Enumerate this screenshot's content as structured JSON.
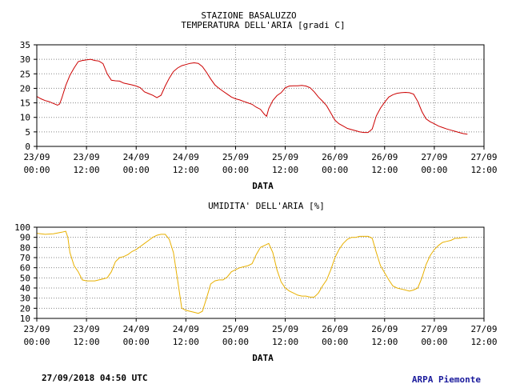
{
  "header": {
    "station": "STAZIONE BASALUZZO",
    "chart1_title": "TEMPERATURA DELL'ARIA [gradi C]"
  },
  "footer": {
    "timestamp": "27/09/2018 04:50 UTC",
    "credit": "ARPA Piemonte"
  },
  "chart_data": [
    {
      "type": "line",
      "title": "TEMPERATURA DELL'ARIA [gradi C]",
      "xlabel": "DATA",
      "ylabel": "",
      "unit": "gradi C",
      "color": "#cc0000",
      "x_ticks": [
        {
          "line1": "23/09",
          "line2": "00:00",
          "h": 0
        },
        {
          "line1": "23/09",
          "line2": "12:00",
          "h": 12
        },
        {
          "line1": "24/09",
          "line2": "00:00",
          "h": 24
        },
        {
          "line1": "24/09",
          "line2": "12:00",
          "h": 36
        },
        {
          "line1": "25/09",
          "line2": "00:00",
          "h": 48
        },
        {
          "line1": "25/09",
          "line2": "12:00",
          "h": 60
        },
        {
          "line1": "26/09",
          "line2": "00:00",
          "h": 72
        },
        {
          "line1": "26/09",
          "line2": "12:00",
          "h": 84
        },
        {
          "line1": "27/09",
          "line2": "00:00",
          "h": 96
        },
        {
          "line1": "27/09",
          "line2": "12:00",
          "h": 108
        }
      ],
      "xlim_h": [
        0,
        108
      ],
      "ylim": [
        0,
        35
      ],
      "y_ticks": [
        0,
        5,
        10,
        15,
        20,
        25,
        30,
        35
      ],
      "grid": true,
      "series": [
        {
          "points": [
            [
              0,
              17.2
            ],
            [
              1,
              16.4
            ],
            [
              2,
              15.8
            ],
            [
              3,
              15.4
            ],
            [
              4,
              14.8
            ],
            [
              5,
              14.2
            ],
            [
              5.5,
              14.6
            ],
            [
              6,
              16.5
            ],
            [
              7,
              21
            ],
            [
              8,
              24.5
            ],
            [
              9,
              27
            ],
            [
              10,
              29.2
            ],
            [
              11,
              29.6
            ],
            [
              12,
              29.8
            ],
            [
              13,
              30
            ],
            [
              14,
              29.6
            ],
            [
              15,
              29.4
            ],
            [
              16,
              28.5
            ],
            [
              17,
              25
            ],
            [
              18,
              22.8
            ],
            [
              19,
              22.6
            ],
            [
              20,
              22.5
            ],
            [
              21,
              21.8
            ],
            [
              22,
              21.5
            ],
            [
              23,
              21.2
            ],
            [
              24,
              20.8
            ],
            [
              25,
              20.2
            ],
            [
              26,
              18.8
            ],
            [
              27,
              18.2
            ],
            [
              28,
              17.6
            ],
            [
              29,
              16.8
            ],
            [
              30,
              17.6
            ],
            [
              31,
              20.8
            ],
            [
              32,
              23.5
            ],
            [
              33,
              25.8
            ],
            [
              34,
              27
            ],
            [
              35,
              27.8
            ],
            [
              36,
              28.2
            ],
            [
              37,
              28.6
            ],
            [
              38,
              28.8
            ],
            [
              39,
              28.6
            ],
            [
              40,
              27.5
            ],
            [
              41,
              25.5
            ],
            [
              42,
              23.2
            ],
            [
              43,
              21.2
            ],
            [
              44,
              20
            ],
            [
              45,
              19
            ],
            [
              46,
              18
            ],
            [
              47,
              17
            ],
            [
              48,
              16.4
            ],
            [
              49,
              16
            ],
            [
              50,
              15.5
            ],
            [
              51,
              15
            ],
            [
              52,
              14.5
            ],
            [
              53,
              13.5
            ],
            [
              54,
              12.8
            ],
            [
              55,
              11
            ],
            [
              55.5,
              10.4
            ],
            [
              56,
              13
            ],
            [
              57,
              15.8
            ],
            [
              58,
              17.5
            ],
            [
              59,
              18.5
            ],
            [
              60,
              20.2
            ],
            [
              61,
              20.8
            ],
            [
              62,
              20.9
            ],
            [
              63,
              20.9
            ],
            [
              64,
              21
            ],
            [
              65,
              20.8
            ],
            [
              66,
              20.2
            ],
            [
              67,
              18.8
            ],
            [
              68,
              17
            ],
            [
              69,
              15.6
            ],
            [
              70,
              14
            ],
            [
              71,
              11.5
            ],
            [
              72,
              9
            ],
            [
              73,
              7.8
            ],
            [
              74,
              7
            ],
            [
              75,
              6.2
            ],
            [
              76,
              5.8
            ],
            [
              77,
              5.4
            ],
            [
              78,
              5
            ],
            [
              79,
              4.8
            ],
            [
              80,
              4.8
            ],
            [
              81,
              6
            ],
            [
              82,
              10.5
            ],
            [
              83,
              13.2
            ],
            [
              84,
              15.2
            ],
            [
              85,
              17
            ],
            [
              86,
              17.8
            ],
            [
              87,
              18.3
            ],
            [
              88,
              18.5
            ],
            [
              89,
              18.6
            ],
            [
              90,
              18.5
            ],
            [
              91,
              18
            ],
            [
              92,
              15.5
            ],
            [
              93,
              12
            ],
            [
              94,
              9.5
            ],
            [
              95,
              8.5
            ],
            [
              96,
              7.8
            ],
            [
              97,
              7
            ],
            [
              98,
              6.5
            ],
            [
              99,
              6
            ],
            [
              100,
              5.6
            ],
            [
              101,
              5.2
            ],
            [
              102,
              4.8
            ],
            [
              103,
              4.4
            ],
            [
              104,
              4.2
            ]
          ]
        }
      ]
    },
    {
      "type": "line",
      "title": "UMIDITA' DELL'ARIA [%]",
      "xlabel": "DATA",
      "ylabel": "",
      "unit": "%",
      "color": "#e8b000",
      "x_ticks": [
        {
          "line1": "23/09",
          "line2": "00:00",
          "h": 0
        },
        {
          "line1": "23/09",
          "line2": "12:00",
          "h": 12
        },
        {
          "line1": "24/09",
          "line2": "00:00",
          "h": 24
        },
        {
          "line1": "24/09",
          "line2": "12:00",
          "h": 36
        },
        {
          "line1": "25/09",
          "line2": "00:00",
          "h": 48
        },
        {
          "line1": "25/09",
          "line2": "12:00",
          "h": 60
        },
        {
          "line1": "26/09",
          "line2": "00:00",
          "h": 72
        },
        {
          "line1": "26/09",
          "line2": "12:00",
          "h": 84
        },
        {
          "line1": "27/09",
          "line2": "00:00",
          "h": 96
        },
        {
          "line1": "27/09",
          "line2": "12:00",
          "h": 108
        }
      ],
      "xlim_h": [
        0,
        108
      ],
      "ylim": [
        10,
        100
      ],
      "y_ticks": [
        10,
        20,
        30,
        40,
        50,
        60,
        70,
        80,
        90,
        100
      ],
      "grid": true,
      "series": [
        {
          "points": [
            [
              0,
              94
            ],
            [
              2,
              93
            ],
            [
              4,
              93.5
            ],
            [
              6,
              95
            ],
            [
              7,
              96
            ],
            [
              7.5,
              90
            ],
            [
              8,
              75
            ],
            [
              9,
              62
            ],
            [
              10,
              56
            ],
            [
              11,
              48
            ],
            [
              12,
              47
            ],
            [
              13,
              47
            ],
            [
              14,
              47
            ],
            [
              15,
              48
            ],
            [
              16,
              49
            ],
            [
              17,
              50
            ],
            [
              18,
              56
            ],
            [
              19,
              66
            ],
            [
              20,
              70
            ],
            [
              21,
              71
            ],
            [
              22,
              73
            ],
            [
              23,
              76
            ],
            [
              24,
              78
            ],
            [
              25,
              81
            ],
            [
              26,
              84
            ],
            [
              27,
              87
            ],
            [
              28,
              90
            ],
            [
              29,
              92
            ],
            [
              30,
              93
            ],
            [
              31,
              93
            ],
            [
              32,
              88
            ],
            [
              33,
              75
            ],
            [
              34,
              48
            ],
            [
              35,
              20
            ],
            [
              36,
              18
            ],
            [
              37,
              17
            ],
            [
              38,
              16
            ],
            [
              39,
              15
            ],
            [
              40,
              17
            ],
            [
              41,
              30
            ],
            [
              42,
              44
            ],
            [
              43,
              47
            ],
            [
              44,
              48
            ],
            [
              45,
              48
            ],
            [
              46,
              51
            ],
            [
              47,
              56
            ],
            [
              48,
              58
            ],
            [
              49,
              60
            ],
            [
              50,
              61
            ],
            [
              51,
              62
            ],
            [
              52,
              64
            ],
            [
              53,
              73
            ],
            [
              54,
              80
            ],
            [
              55,
              82
            ],
            [
              56,
              84
            ],
            [
              57,
              75
            ],
            [
              58,
              58
            ],
            [
              59,
              46
            ],
            [
              60,
              40
            ],
            [
              61,
              37
            ],
            [
              62,
              35
            ],
            [
              63,
              33
            ],
            [
              64,
              32
            ],
            [
              65,
              32
            ],
            [
              66,
              31
            ],
            [
              67,
              31
            ],
            [
              68,
              35
            ],
            [
              69,
              42
            ],
            [
              70,
              48
            ],
            [
              71,
              58
            ],
            [
              72,
              70
            ],
            [
              73,
              78
            ],
            [
              74,
              84
            ],
            [
              75,
              88
            ],
            [
              76,
              90
            ],
            [
              77,
              90
            ],
            [
              78,
              91
            ],
            [
              79,
              91
            ],
            [
              80,
              91
            ],
            [
              81,
              89
            ],
            [
              82,
              75
            ],
            [
              83,
              62
            ],
            [
              84,
              55
            ],
            [
              85,
              48
            ],
            [
              86,
              42
            ],
            [
              87,
              40
            ],
            [
              88,
              39
            ],
            [
              89,
              38
            ],
            [
              90,
              37
            ],
            [
              91,
              38
            ],
            [
              92,
              40
            ],
            [
              93,
              50
            ],
            [
              94,
              63
            ],
            [
              95,
              72
            ],
            [
              96,
              78
            ],
            [
              97,
              82
            ],
            [
              98,
              85
            ],
            [
              99,
              86
            ],
            [
              100,
              87
            ],
            [
              101,
              89
            ],
            [
              102,
              89
            ],
            [
              103,
              90
            ],
            [
              104,
              90
            ]
          ]
        }
      ]
    }
  ]
}
